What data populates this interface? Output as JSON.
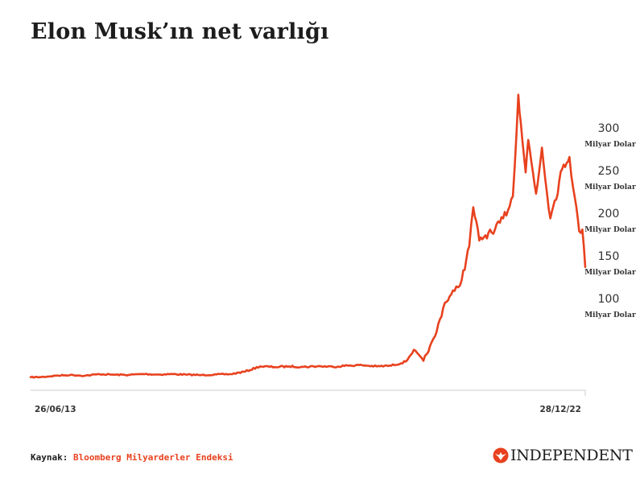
{
  "title": "Elon Musk’ın net varlığı",
  "source": {
    "label": "Kaynak:",
    "name": "Bloomberg Milyarderler Endeksi"
  },
  "logo": {
    "text": "INDEPENDENT",
    "icon": "eagle-icon"
  },
  "colors": {
    "line": "#e8411e",
    "axis": "#cccccc",
    "text": "#333333"
  },
  "chart_data": {
    "type": "line",
    "title": "Elon Musk’ın net varlığı",
    "x_tick_labels": [
      "26/06/13",
      "28/12/22"
    ],
    "y_ticks": [
      {
        "value": 300,
        "unit": "Milyar Dolar"
      },
      {
        "value": 250,
        "unit": "Milyar Dolar"
      },
      {
        "value": 200,
        "unit": "Milyar Dolar"
      },
      {
        "value": 150,
        "unit": "Milyar Dolar"
      },
      {
        "value": 100,
        "unit": "Milyar Dolar"
      }
    ],
    "x_range": [
      "2013-06-26",
      "2022-12-28"
    ],
    "grid": false,
    "series": [
      {
        "points": [
          [
            "2013-06-26",
            6.8
          ],
          [
            "2013-09-01",
            7.0
          ],
          [
            "2013-12-01",
            8.6
          ],
          [
            "2014-03-01",
            9.4
          ],
          [
            "2014-06-01",
            8.6
          ],
          [
            "2014-09-01",
            10.4
          ],
          [
            "2014-12-01",
            9.7
          ],
          [
            "2015-03-01",
            9.5
          ],
          [
            "2015-06-01",
            10.6
          ],
          [
            "2015-09-01",
            9.9
          ],
          [
            "2015-12-01",
            10.5
          ],
          [
            "2016-03-01",
            9.8
          ],
          [
            "2016-06-01",
            9.3
          ],
          [
            "2016-09-01",
            10.0
          ],
          [
            "2016-12-01",
            10.4
          ],
          [
            "2017-03-01",
            13.5
          ],
          [
            "2017-06-01",
            19.5
          ],
          [
            "2017-09-01",
            18.7
          ],
          [
            "2017-12-01",
            19.5
          ],
          [
            "2018-03-01",
            18.9
          ],
          [
            "2018-06-01",
            19.7
          ],
          [
            "2018-09-01",
            19.1
          ],
          [
            "2018-12-01",
            20.5
          ],
          [
            "2019-03-01",
            20.9
          ],
          [
            "2019-06-01",
            19.5
          ],
          [
            "2019-09-01",
            20.4
          ],
          [
            "2019-12-01",
            25.1
          ],
          [
            "2020-01-20",
            39.0
          ],
          [
            "2020-03-20",
            26.0
          ],
          [
            "2020-06-01",
            55.0
          ],
          [
            "2020-08-01",
            94.0
          ],
          [
            "2020-10-01",
            108.0
          ],
          [
            "2020-11-15",
            121.0
          ],
          [
            "2021-01-01",
            160.0
          ],
          [
            "2021-01-26",
            206.0
          ],
          [
            "2021-03-05",
            167.0
          ],
          [
            "2021-05-01",
            176.0
          ],
          [
            "2021-06-01",
            175.0
          ],
          [
            "2021-08-01",
            193.0
          ],
          [
            "2021-10-01",
            219.0
          ],
          [
            "2021-11-04",
            338.0
          ],
          [
            "2021-11-20",
            305.0
          ],
          [
            "2021-12-20",
            247.0
          ],
          [
            "2022-01-05",
            285.0
          ],
          [
            "2022-02-23",
            222.0
          ],
          [
            "2022-04-01",
            276.0
          ],
          [
            "2022-05-24",
            193.0
          ],
          [
            "2022-06-20",
            214.0
          ],
          [
            "2022-08-15",
            256.0
          ],
          [
            "2022-09-20",
            265.0
          ],
          [
            "2022-10-25",
            216.0
          ],
          [
            "2022-11-20",
            178.0
          ],
          [
            "2022-12-10",
            180.0
          ],
          [
            "2022-12-28",
            136.0
          ]
        ]
      }
    ]
  }
}
